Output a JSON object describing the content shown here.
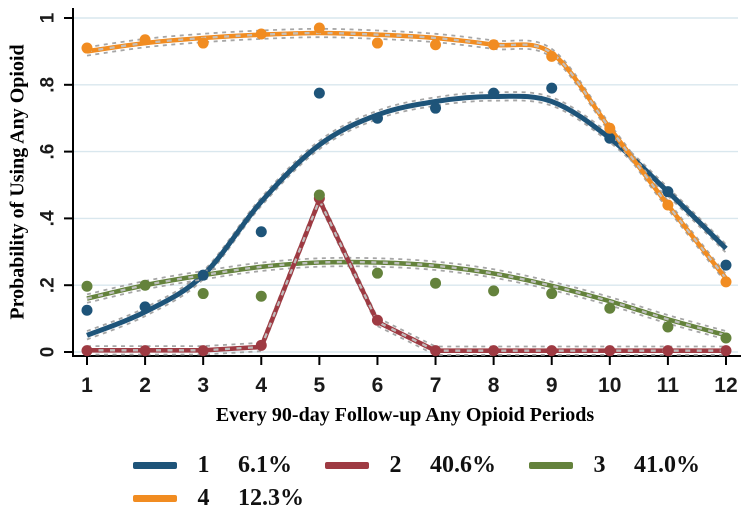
{
  "chart_data": {
    "type": "line",
    "title": "",
    "xlabel": "Every 90-day Follow-up Any Opioid Periods",
    "ylabel": "Probability of Using Any Opioid",
    "x": [
      1,
      2,
      3,
      4,
      5,
      6,
      7,
      8,
      9,
      10,
      11,
      12
    ],
    "x_ticks": [
      "1",
      "2",
      "3",
      "4",
      "5",
      "6",
      "7",
      "8",
      "9",
      "10",
      "11",
      "12"
    ],
    "y_ticks": [
      "0",
      ".2",
      ".4",
      ".6",
      ".8",
      "1"
    ],
    "y_tick_values": [
      0,
      0.2,
      0.4,
      0.6,
      0.8,
      1
    ],
    "xlim": [
      1,
      12
    ],
    "ylim": [
      0,
      1
    ],
    "grid": "horizontal",
    "grid_color": "#d9e7ee",
    "axis_color": "#000000",
    "ci_band_color": "#a6a6a6",
    "legend_position": "bottom",
    "series": [
      {
        "group": "1",
        "share": "6.1%",
        "color": "#1e5479",
        "smooth": true,
        "dash_overlay": false,
        "fitted": [
          0.05,
          0.12,
          0.23,
          0.45,
          0.62,
          0.71,
          0.75,
          0.765,
          0.75,
          0.64,
          0.48,
          0.31
        ],
        "observed": [
          0.125,
          0.135,
          0.23,
          0.36,
          0.775,
          0.7,
          0.73,
          0.775,
          0.79,
          0.64,
          0.48,
          0.26
        ]
      },
      {
        "group": "2",
        "share": "40.6%",
        "color": "#9e3a42",
        "smooth": false,
        "dash_overlay": true,
        "fitted": [
          0.005,
          0.005,
          0.005,
          0.015,
          0.455,
          0.09,
          0.004,
          0.004,
          0.004,
          0.004,
          0.004,
          0.004
        ],
        "observed": [
          0.004,
          0.004,
          0.004,
          0.02,
          0.46,
          0.095,
          0.004,
          0.004,
          0.004,
          0.004,
          0.004,
          0.004
        ]
      },
      {
        "group": "3",
        "share": "41.0%",
        "color": "#64823c",
        "smooth": true,
        "dash_overlay": true,
        "fitted": [
          0.16,
          0.2,
          0.23,
          0.255,
          0.268,
          0.268,
          0.258,
          0.235,
          0.198,
          0.152,
          0.098,
          0.05
        ],
        "observed": [
          0.197,
          0.2,
          0.175,
          0.167,
          0.47,
          0.236,
          0.206,
          0.183,
          0.175,
          0.131,
          0.075,
          0.042
        ]
      },
      {
        "group": "4",
        "share": "12.3%",
        "color": "#f18c21",
        "smooth": true,
        "dash_overlay": true,
        "fitted": [
          0.9,
          0.925,
          0.94,
          0.95,
          0.955,
          0.95,
          0.94,
          0.92,
          0.895,
          0.67,
          0.44,
          0.22
        ],
        "observed": [
          0.91,
          0.935,
          0.925,
          0.952,
          0.97,
          0.925,
          0.92,
          0.92,
          0.885,
          0.67,
          0.44,
          0.21
        ]
      }
    ]
  }
}
